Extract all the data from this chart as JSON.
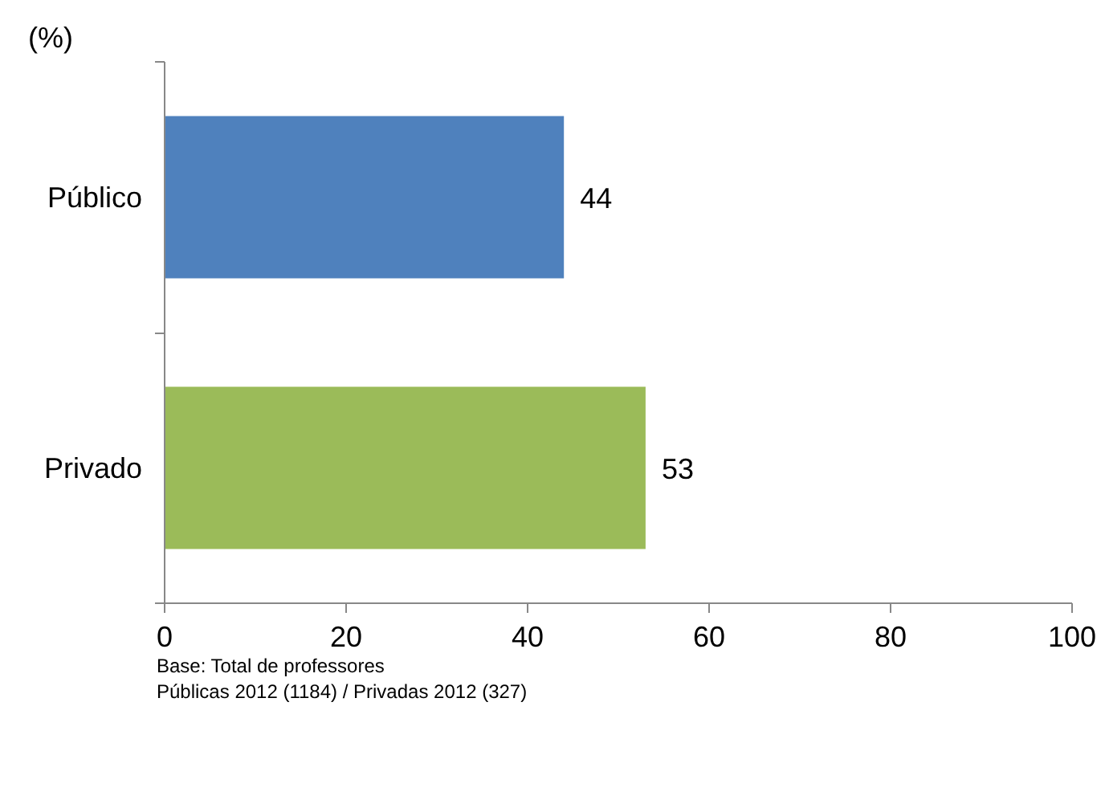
{
  "chart_data": {
    "type": "bar",
    "orientation": "horizontal",
    "ylabel": "(%)",
    "categories": [
      "Público",
      "Privado"
    ],
    "values": [
      44,
      53
    ],
    "colors": [
      "#4f81bd",
      "#9bbb59"
    ],
    "xlim": [
      0,
      100
    ],
    "xticks": [
      0,
      20,
      40,
      60,
      80,
      100
    ],
    "data_labels": true,
    "grid": false,
    "annotations": [
      "Base: Total de professores",
      "Públicas 2012 (1184) / Privadas  2012 (327)"
    ]
  }
}
